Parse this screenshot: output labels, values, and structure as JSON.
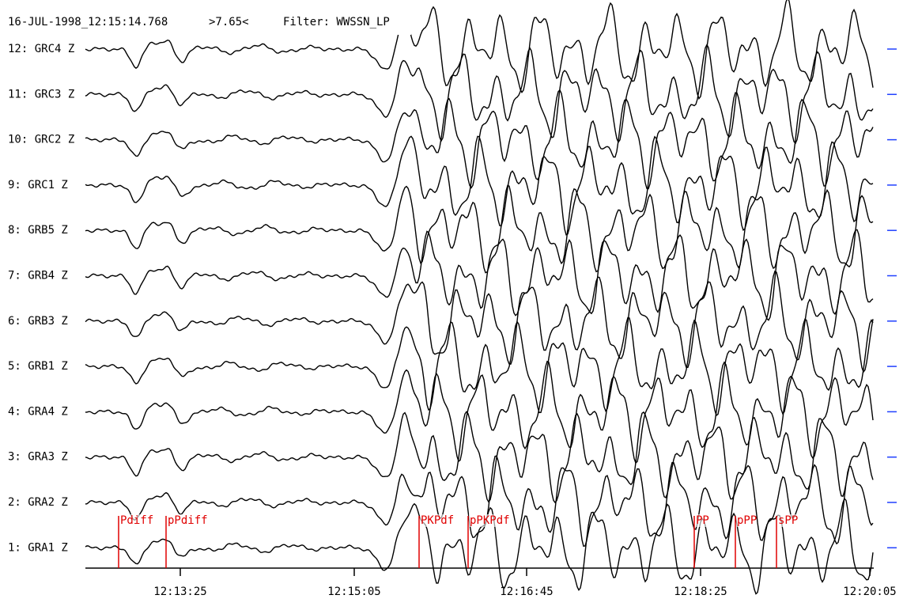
{
  "header": {
    "datetime": "16-JUL-1998_12:15:14.768",
    "magnitude": ">7.65<",
    "filter": "Filter: WWSSN_LP"
  },
  "traces": [
    "12: GRC4 Z",
    "11: GRC3 Z",
    "10: GRC2 Z",
    "9: GRC1 Z",
    "8: GRB5 Z",
    "7: GRB4 Z",
    "6: GRB3 Z",
    "5: GRB1 Z",
    "4: GRA4 Z",
    "3: GRA3 Z",
    "2: GRA2 Z",
    "1: GRA1 Z"
  ],
  "phases": [
    "Pdiff",
    "pPdiff",
    "PKPdf",
    "pPKPdf",
    "PP",
    "pPP",
    "sPP"
  ],
  "time_ticks": [
    "12:13:25",
    "12:15:05",
    "12:16:45",
    "12:18:25",
    "12:20:05"
  ]
}
